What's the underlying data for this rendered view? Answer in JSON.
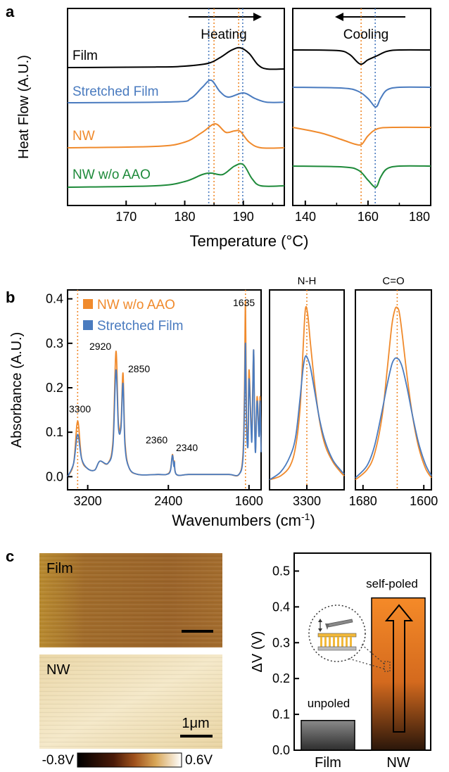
{
  "panels": {
    "a": "a",
    "b": "b",
    "c": "c"
  },
  "colors": {
    "film": "#000000",
    "stretched": "#4a7bbf",
    "nw": "#f08a2c",
    "nw_wo_aao": "#1e8a3a",
    "orange_line": "#f08a2c",
    "blue_line": "#4a7bbf"
  },
  "panel_a": {
    "y_label": "Heat Flow (A.U.)",
    "x_label": "Temperature (°C)",
    "heating_label": "Heating",
    "cooling_label": "Cooling",
    "legend": [
      "Film",
      "Stretched Film",
      "NW",
      "NW w/o AAO"
    ],
    "heating_xlim": [
      160,
      197
    ],
    "heating_ticks": [
      "170",
      "180",
      "190"
    ],
    "cooling_xlim": [
      136,
      180
    ],
    "cooling_ticks": [
      "140",
      "160",
      "180"
    ]
  },
  "panel_b": {
    "y_label": "Absorbance (A.U.)",
    "x_label": "Wavenumbers (cm",
    "x_label_sup": "-1",
    "x_label_end": ")",
    "legend": [
      "NW w/o AAO",
      "Stretched Film"
    ],
    "yticks": [
      "0.0",
      "0.1",
      "0.2",
      "0.3",
      "0.4"
    ],
    "main_ticks": [
      "3200",
      "2400",
      "1600"
    ],
    "nh_title": "N-H",
    "nh_ticks": [
      "3300"
    ],
    "co_title": "C=O",
    "co_ticks": [
      "1680",
      "1600"
    ],
    "peak_labels": [
      "3300",
      "2920",
      "2850",
      "2360",
      "2340",
      "1635"
    ]
  },
  "panel_c": {
    "img_film_label": "Film",
    "img_nw_label": "NW",
    "scale_label": "1μm",
    "colorbar_min": "-0.8V",
    "colorbar_max": "0.6V",
    "y_label": "ΔV (V)",
    "yticks": [
      "0.0",
      "0.1",
      "0.2",
      "0.3",
      "0.4",
      "0.5"
    ],
    "annotations": [
      "unpoled",
      "self-poled"
    ]
  },
  "chart_data": [
    {
      "type": "line",
      "title": "",
      "xlabel": "Temperature (°C)",
      "ylabel": "Heat Flow (A.U.)",
      "subplot": "heating",
      "xlim": [
        160,
        197
      ],
      "series": [
        {
          "name": "Film",
          "x": [
            160,
            175,
            180,
            184,
            186,
            188,
            189.5,
            191,
            192.5,
            194,
            197
          ],
          "y": [
            0,
            0.02,
            0.05,
            0.15,
            0.35,
            0.62,
            0.7,
            0.5,
            0.1,
            -0.05,
            -0.05
          ]
        },
        {
          "name": "Stretched Film",
          "x": [
            160,
            178,
            181,
            183,
            184.5,
            186,
            187.5,
            190,
            192,
            194,
            197
          ],
          "y": [
            0,
            0.03,
            0.15,
            0.55,
            0.8,
            0.4,
            0.2,
            0.35,
            0.15,
            0.02,
            0.02
          ]
        },
        {
          "name": "NW",
          "x": [
            160,
            175,
            180,
            183,
            185.2,
            187,
            188.5,
            189.5,
            191,
            193,
            197
          ],
          "y": [
            0,
            0.05,
            0.2,
            0.55,
            0.85,
            0.55,
            0.6,
            0.58,
            0.2,
            0.0,
            0.0
          ]
        },
        {
          "name": "NW w/o AAO",
          "x": [
            160,
            175,
            180,
            183,
            184.5,
            186.5,
            188.5,
            190,
            191.5,
            193,
            197
          ],
          "y": [
            0,
            0.05,
            0.2,
            0.45,
            0.5,
            0.45,
            0.75,
            0.8,
            0.3,
            0.05,
            0.05
          ]
        }
      ]
    },
    {
      "type": "line",
      "title": "",
      "xlabel": "Temperature (°C)",
      "subplot": "cooling",
      "xlim": [
        136,
        180
      ],
      "series": [
        {
          "name": "Film",
          "x": [
            136,
            150,
            154,
            157.5,
            160,
            163,
            166,
            170,
            180
          ],
          "y": [
            0,
            -0.02,
            -0.15,
            -0.5,
            -0.35,
            -0.2,
            -0.05,
            0.0,
            0.0
          ]
        },
        {
          "name": "Stretched Film",
          "x": [
            136,
            152,
            157,
            160,
            162.5,
            164,
            166,
            170,
            180
          ],
          "y": [
            0,
            -0.03,
            -0.15,
            -0.4,
            -0.7,
            -0.4,
            -0.1,
            0.0,
            0.0
          ]
        },
        {
          "name": "NW",
          "x": [
            136,
            145,
            152,
            156,
            158,
            160,
            163,
            168,
            180
          ],
          "y": [
            0,
            -0.2,
            -0.45,
            -0.6,
            -0.6,
            -0.3,
            -0.05,
            0.0,
            0.0
          ]
        },
        {
          "name": "NW w/o AAO",
          "x": [
            136,
            152,
            157,
            160,
            162.5,
            164,
            166,
            170,
            180
          ],
          "y": [
            0,
            -0.03,
            -0.15,
            -0.5,
            -0.75,
            -0.4,
            -0.1,
            0.0,
            0.0
          ]
        }
      ]
    },
    {
      "type": "line",
      "title": "",
      "xlabel": "Wavenumbers (cm-1)",
      "ylabel": "Absorbance (A.U.)",
      "xlim": [
        3400,
        1480
      ],
      "ylim": [
        -0.02,
        0.42
      ],
      "series": [
        {
          "name": "NW w/o AAO",
          "x": [
            3400,
            3340,
            3300,
            3260,
            3200,
            3130,
            3080,
            3000,
            2950,
            2920,
            2895,
            2870,
            2850,
            2830,
            2790,
            2700,
            2500,
            2420,
            2380,
            2360,
            2345,
            2340,
            2320,
            2200,
            2000,
            1800,
            1700,
            1660,
            1645,
            1635,
            1625,
            1610,
            1600,
            1580,
            1570,
            1555,
            1545,
            1535,
            1520,
            1500,
            1490,
            1480
          ],
          "y": [
            0.0,
            0.03,
            0.125,
            0.04,
            0.018,
            0.015,
            0.035,
            0.03,
            0.08,
            0.282,
            0.12,
            0.12,
            0.233,
            0.08,
            0.02,
            0.005,
            0.005,
            0.005,
            0.015,
            0.05,
            0.025,
            0.035,
            0.005,
            0.005,
            0.005,
            0.005,
            0.005,
            0.05,
            0.2,
            0.395,
            0.15,
            0.08,
            0.24,
            0.12,
            0.1,
            0.285,
            0.14,
            0.06,
            0.18,
            0.1,
            0.18,
            0.06
          ]
        },
        {
          "name": "Stretched Film",
          "x": [
            3400,
            3340,
            3300,
            3260,
            3200,
            3130,
            3080,
            3000,
            2950,
            2920,
            2895,
            2870,
            2850,
            2830,
            2790,
            2700,
            2500,
            2420,
            2380,
            2360,
            2345,
            2340,
            2320,
            2200,
            2000,
            1800,
            1700,
            1660,
            1645,
            1635,
            1625,
            1610,
            1600,
            1580,
            1570,
            1555,
            1545,
            1535,
            1520,
            1500,
            1490,
            1480
          ],
          "y": [
            0.0,
            0.03,
            0.095,
            0.04,
            0.018,
            0.015,
            0.035,
            0.03,
            0.07,
            0.24,
            0.11,
            0.11,
            0.21,
            0.07,
            0.02,
            0.005,
            0.005,
            0.005,
            0.013,
            0.048,
            0.023,
            0.033,
            0.005,
            0.005,
            0.005,
            0.005,
            0.005,
            0.04,
            0.16,
            0.3,
            0.12,
            0.07,
            0.22,
            0.11,
            0.09,
            0.285,
            0.13,
            0.055,
            0.17,
            0.09,
            0.17,
            0.055
          ]
        }
      ]
    },
    {
      "type": "line",
      "title": "N-H",
      "xlim": [
        3400,
        3200
      ],
      "series": [
        {
          "name": "NW w/o AAO",
          "x": [
            3400,
            3370,
            3345,
            3330,
            3318,
            3310,
            3304,
            3298,
            3290,
            3278,
            3265,
            3250,
            3230,
            3210,
            3200
          ],
          "y": [
            0.03,
            0.05,
            0.1,
            0.2,
            0.4,
            0.7,
            0.9,
            0.88,
            0.72,
            0.5,
            0.32,
            0.2,
            0.12,
            0.07,
            0.05
          ]
        },
        {
          "name": "Stretched Film",
          "x": [
            3400,
            3370,
            3345,
            3330,
            3318,
            3310,
            3304,
            3298,
            3290,
            3278,
            3265,
            3250,
            3230,
            3210,
            3200
          ],
          "y": [
            0.03,
            0.07,
            0.15,
            0.25,
            0.45,
            0.6,
            0.66,
            0.65,
            0.6,
            0.47,
            0.33,
            0.22,
            0.13,
            0.08,
            0.06
          ]
        }
      ]
    },
    {
      "type": "line",
      "title": "C=O",
      "xlim": [
        1690,
        1590
      ],
      "series": [
        {
          "name": "NW w/o AAO",
          "x": [
            1690,
            1675,
            1665,
            1655,
            1648,
            1642,
            1638,
            1635,
            1632,
            1628,
            1622,
            1615,
            1607,
            1598,
            1590
          ],
          "y": [
            0.03,
            0.08,
            0.16,
            0.35,
            0.6,
            0.82,
            0.9,
            0.91,
            0.88,
            0.76,
            0.56,
            0.36,
            0.2,
            0.09,
            0.04
          ]
        },
        {
          "name": "Stretched Film",
          "x": [
            1690,
            1675,
            1665,
            1655,
            1648,
            1642,
            1638,
            1635,
            1632,
            1628,
            1622,
            1615,
            1607,
            1598,
            1590
          ],
          "y": [
            0.04,
            0.1,
            0.2,
            0.38,
            0.52,
            0.62,
            0.65,
            0.65,
            0.64,
            0.6,
            0.5,
            0.36,
            0.22,
            0.11,
            0.05
          ]
        }
      ]
    },
    {
      "type": "bar",
      "title": "",
      "ylabel": "ΔV (V)",
      "categories": [
        "Film",
        "NW"
      ],
      "values": [
        0.083,
        0.425
      ],
      "ylim": [
        0,
        0.55
      ]
    }
  ]
}
